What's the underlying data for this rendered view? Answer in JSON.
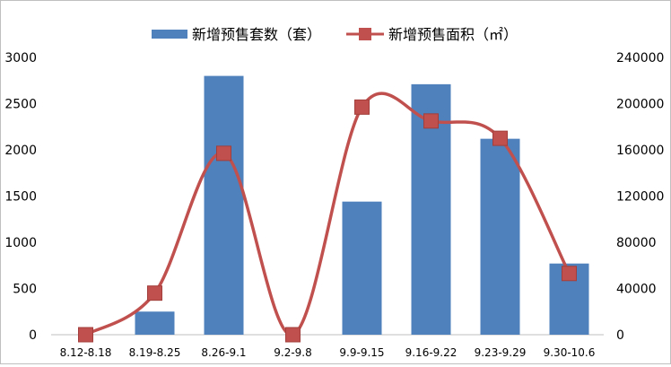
{
  "chart_data": {
    "type": "bar",
    "categories": [
      "8.12-8.18",
      "8.19-8.25",
      "8.26-9.1",
      "9.2-9.8",
      "9.9-9.15",
      "9.16-9.22",
      "9.23-9.29",
      "9.30-10.6"
    ],
    "series": [
      {
        "name": "新增预售套数（套）",
        "type": "bar",
        "axis": "left",
        "color": "#4f81bd",
        "values": [
          0,
          250,
          2800,
          0,
          1440,
          2710,
          2120,
          770
        ]
      },
      {
        "name": "新增预售面积（㎡）",
        "type": "line",
        "axis": "right",
        "color": "#c0504d",
        "smooth": true,
        "marker": "square",
        "values": [
          0,
          36000,
          157000,
          0,
          197000,
          185000,
          170000,
          53000
        ]
      }
    ],
    "y_left": {
      "min": 0,
      "max": 3000,
      "ticks": [
        "0",
        "500",
        "1000",
        "1500",
        "2000",
        "2500",
        "3000"
      ]
    },
    "y_right": {
      "min": 0,
      "max": 240000,
      "ticks": [
        "0",
        "40000",
        "80000",
        "120000",
        "160000",
        "200000",
        "240000"
      ]
    },
    "legend_position": "top",
    "grid": false
  }
}
